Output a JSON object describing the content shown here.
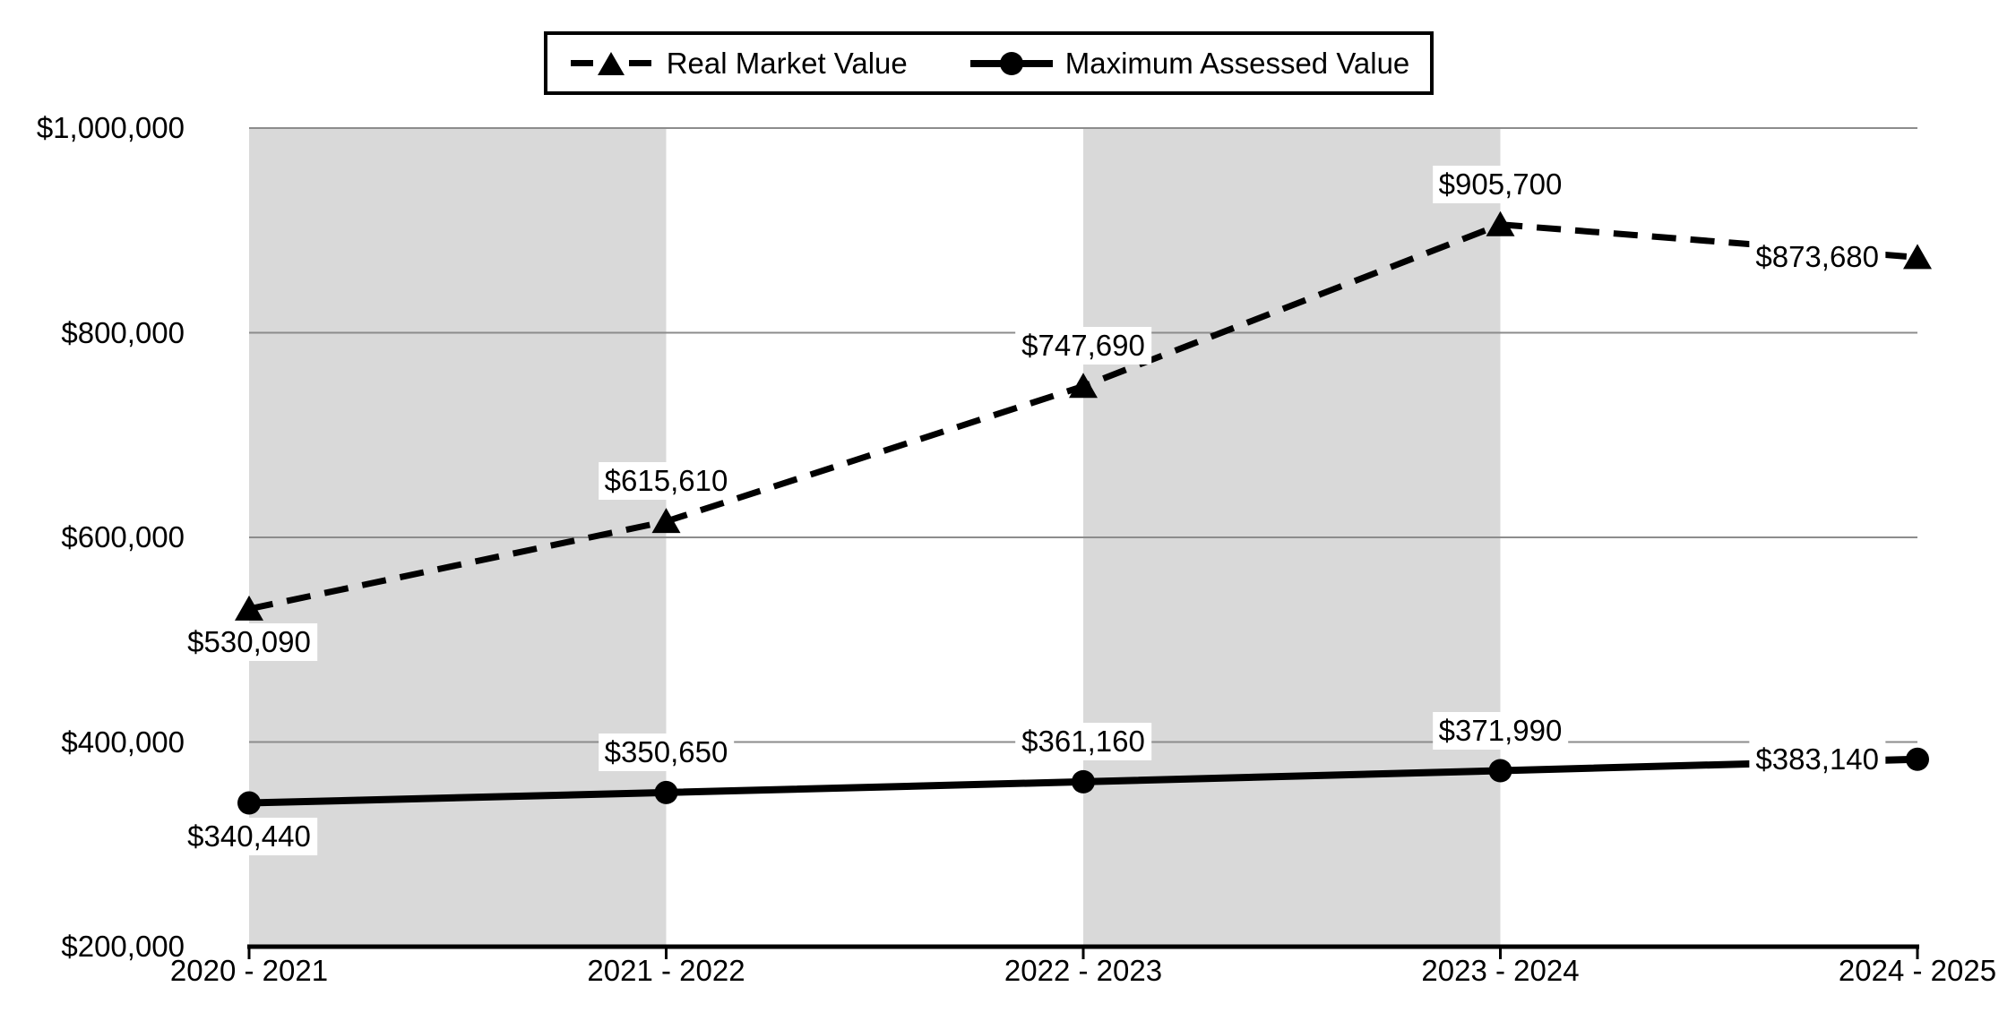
{
  "chart_data": {
    "type": "line",
    "title": "",
    "categories": [
      "2020 - 2021",
      "2021 - 2022",
      "2022 - 2023",
      "2023 - 2024",
      "2024 - 2025"
    ],
    "series": [
      {
        "name": "Real Market Value",
        "values": [
          530090,
          615610,
          747690,
          905700,
          873680
        ],
        "data_labels": [
          "$530,090",
          "$615,610",
          "$747,690",
          "$905,700",
          "$873,680"
        ],
        "line_style": "dashed",
        "marker": "triangle",
        "color": "#000000",
        "label_positions": [
          "below",
          "above",
          "above",
          "above",
          "left"
        ]
      },
      {
        "name": "Maximum Assessed Value",
        "values": [
          340440,
          350650,
          361160,
          371990,
          383140
        ],
        "data_labels": [
          "$340,440",
          "$350,650",
          "$361,160",
          "$371,990",
          "$383,140"
        ],
        "line_style": "solid",
        "marker": "circle",
        "color": "#000000",
        "label_positions": [
          "below",
          "above",
          "above",
          "above",
          "left"
        ]
      }
    ],
    "y_axis": {
      "min": 200000,
      "max": 1000000,
      "step": 200000,
      "tick_labels": [
        "$200,000",
        "$400,000",
        "$600,000",
        "$800,000",
        "$1,000,000"
      ]
    },
    "shaded_bands": [
      [
        0,
        1
      ],
      [
        2,
        3
      ]
    ],
    "legend": {
      "position": "top",
      "border": true
    },
    "grid": "horizontal",
    "colors": {
      "series": "#000000",
      "band": "#d9d9d9",
      "gridline": "#8c8c8c",
      "axis": "#000000",
      "background": "#ffffff"
    }
  }
}
